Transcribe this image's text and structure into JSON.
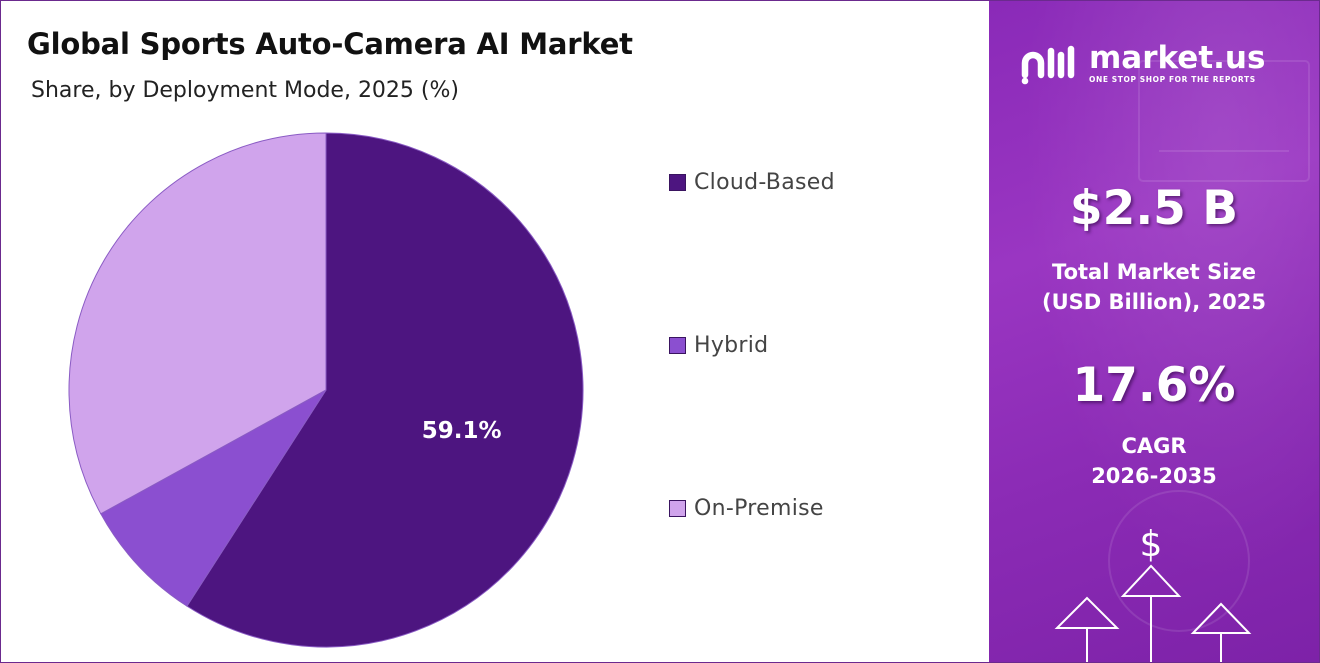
{
  "title": "Global Sports Auto-Camera AI Market",
  "subtitle": "Share, by Deployment Mode, 2025 (%)",
  "chart_data": {
    "type": "pie",
    "categories": [
      "Cloud-Based",
      "Hybrid",
      "On-Premise"
    ],
    "values": [
      59.1,
      7.9,
      33.0
    ],
    "data_labels": [
      "59.1%",
      "",
      ""
    ],
    "colors": [
      "#4d1580",
      "#8b4fd0",
      "#d0a4ec"
    ],
    "start_angle_deg": 0,
    "direction": "clockwise",
    "legend_position": "right"
  },
  "brand": {
    "name": "market.us",
    "tagline": "ONE STOP SHOP FOR THE REPORTS"
  },
  "stats": {
    "market_size_value": "$2.5 B",
    "market_size_label_line1": "Total Market Size",
    "market_size_label_line2": "(USD Billion), 2025",
    "cagr_value": "17.6%",
    "cagr_label_line1": "CAGR",
    "cagr_label_line2": "2026-2035"
  },
  "icons": {
    "dollar": "$",
    "arrows": "up-arrows-icon"
  }
}
